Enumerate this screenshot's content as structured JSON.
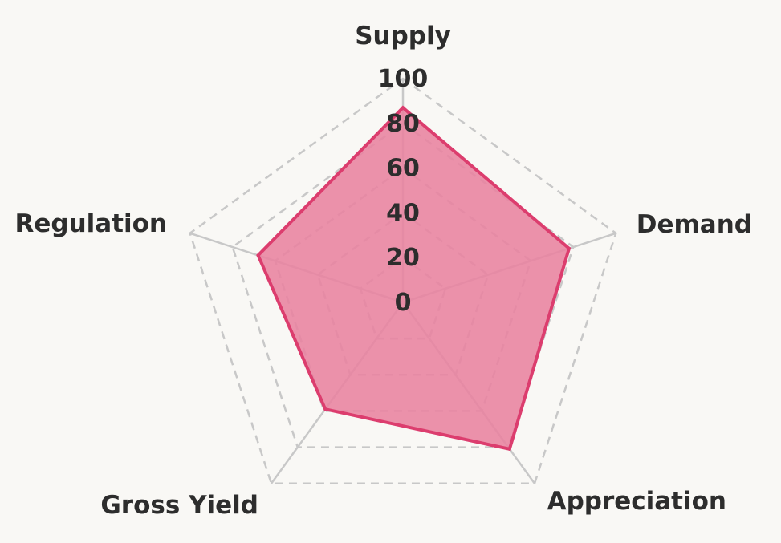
{
  "chart_data": {
    "type": "radar",
    "axes": [
      "Supply",
      "Demand",
      "Appreciation",
      "Gross Yield",
      "Regulation"
    ],
    "series": [
      {
        "values": [
          87,
          78,
          81,
          59,
          68
        ],
        "color": "#dc3d6e",
        "fill_color": "#e8829f"
      }
    ],
    "r_ticks": [
      0,
      20,
      40,
      60,
      80,
      100
    ],
    "r_range": [
      0,
      100
    ],
    "grid": true,
    "background": "#f9f8f5"
  }
}
